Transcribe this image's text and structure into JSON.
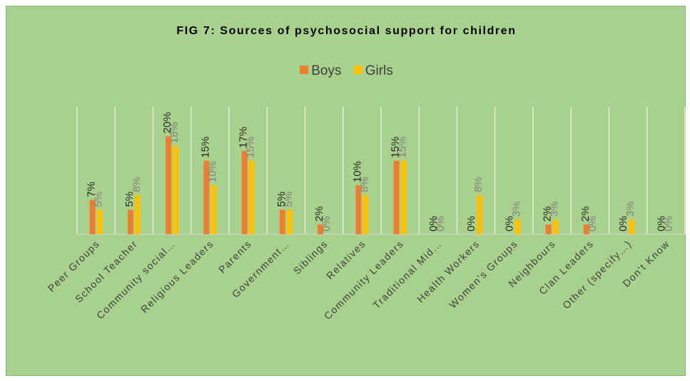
{
  "chart_data": {
    "type": "bar",
    "title": "FIG 7: Sources of psychosocial support for children",
    "categories": [
      "Peer Groups",
      "School Teacher",
      "Community social…",
      "Religious Leaders",
      "Parents",
      "Government…",
      "Siblings",
      "Relatives",
      "Community Leaders",
      "Traditional Mid…",
      "Health Workers",
      "Women's Groups",
      "Neighbours",
      "Clan Leaders",
      "Other (specify…)",
      "Don't Know"
    ],
    "series": [
      {
        "name": "Boys",
        "color": "#ed7d31",
        "values": [
          7,
          5,
          20,
          15,
          17,
          5,
          2,
          10,
          15,
          0,
          0,
          0,
          2,
          2,
          0,
          0
        ]
      },
      {
        "name": "Girls",
        "color": "#ffc000",
        "values": [
          5,
          8,
          18,
          10,
          15,
          5,
          0,
          8,
          15,
          0,
          8,
          3,
          3,
          0,
          3,
          0
        ]
      }
    ],
    "data_label_suffix": "%",
    "ylim": [
      0,
      26
    ],
    "grid": "vertical category separators",
    "legend_position": "top"
  }
}
